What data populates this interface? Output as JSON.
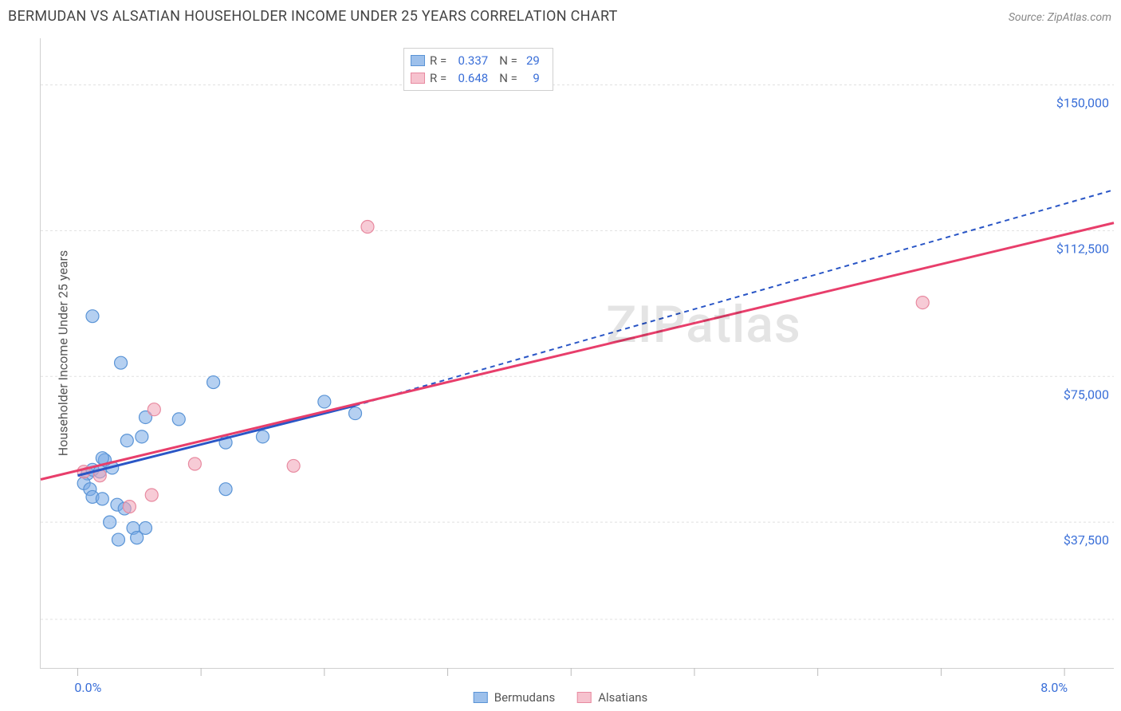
{
  "title": "BERMUDAN VS ALSATIAN HOUSEHOLDER INCOME UNDER 25 YEARS CORRELATION CHART",
  "source": {
    "prefix": "Source: ",
    "name": "ZipAtlas.com"
  },
  "ylabel": "Householder Income Under 25 years",
  "watermark": "ZIPatlas",
  "plot": {
    "x_pct": {
      "min": -0.3,
      "max": 8.4
    },
    "y_val": {
      "min": 0,
      "max": 162000
    },
    "xticks": [
      0,
      1,
      2,
      3,
      4,
      5,
      6,
      7,
      8
    ],
    "xtick_labels": {
      "0": "0.0%",
      "8": "8.0%"
    },
    "y_gridlines": [
      12500,
      37500,
      75000,
      112500,
      150000
    ],
    "ytick_labels": {
      "37500": "$37,500",
      "75000": "$75,000",
      "112500": "$112,500",
      "150000": "$150,000"
    },
    "background_color": "#ffffff",
    "grid_color": "#e0e0e0",
    "border_color": "#d0d0d0",
    "marker_radius": 8
  },
  "stats": [
    {
      "color_fill": "#9dc0eb",
      "color_stroke": "#5a94d6",
      "r": "0.337",
      "n": "29"
    },
    {
      "color_fill": "#f6c2ce",
      "color_stroke": "#e88aa0",
      "r": "0.648",
      "n": "9"
    }
  ],
  "series": [
    {
      "name": "Bermudans",
      "color_fill": "rgba(120,170,230,0.55)",
      "color_stroke": "#5a94d6",
      "points": [
        [
          0.12,
          90500
        ],
        [
          0.35,
          78500
        ],
        [
          1.1,
          73500
        ],
        [
          0.08,
          50000
        ],
        [
          0.12,
          51000
        ],
        [
          0.18,
          50500
        ],
        [
          0.28,
          51500
        ],
        [
          0.22,
          53500
        ],
        [
          0.05,
          47500
        ],
        [
          0.1,
          46000
        ],
        [
          0.12,
          44000
        ],
        [
          0.2,
          43500
        ],
        [
          0.32,
          42000
        ],
        [
          0.38,
          41000
        ],
        [
          0.4,
          58500
        ],
        [
          0.52,
          59500
        ],
        [
          0.55,
          64500
        ],
        [
          0.82,
          64000
        ],
        [
          0.26,
          37500
        ],
        [
          0.45,
          36000
        ],
        [
          0.55,
          36000
        ],
        [
          0.2,
          54000
        ],
        [
          1.2,
          46000
        ],
        [
          1.2,
          58000
        ],
        [
          1.5,
          59500
        ],
        [
          2.0,
          68500
        ],
        [
          2.25,
          65500
        ],
        [
          0.33,
          33000
        ],
        [
          0.48,
          33500
        ]
      ],
      "trend": {
        "x1": 0.0,
        "y1": 49500,
        "x2": 2.25,
        "y2": 67500,
        "color": "#2a56c6",
        "dash": "none",
        "width": 3
      },
      "trend_dashed_ext": {
        "x1": 2.25,
        "y1": 67500,
        "x2": 8.4,
        "y2": 123000,
        "color": "#2a56c6",
        "dash": "6 5",
        "width": 2
      }
    },
    {
      "name": "Alsatians",
      "color_fill": "rgba(240,160,180,0.55)",
      "color_stroke": "#e88aa0",
      "points": [
        [
          0.05,
          50500
        ],
        [
          0.18,
          49500
        ],
        [
          0.42,
          41500
        ],
        [
          0.6,
          44500
        ],
        [
          0.62,
          66500
        ],
        [
          0.95,
          52500
        ],
        [
          1.75,
          52000
        ],
        [
          2.35,
          113500
        ],
        [
          6.85,
          94000
        ]
      ],
      "trend": {
        "x1": -0.3,
        "y1": 48500,
        "x2": 8.4,
        "y2": 114500,
        "color": "#e83e6b",
        "dash": "none",
        "width": 3
      }
    }
  ],
  "legend_bottom": [
    {
      "label": "Bermudans",
      "fill": "#9dc0eb",
      "stroke": "#5a94d6"
    },
    {
      "label": "Alsatians",
      "fill": "#f6c2ce",
      "stroke": "#e88aa0"
    }
  ]
}
